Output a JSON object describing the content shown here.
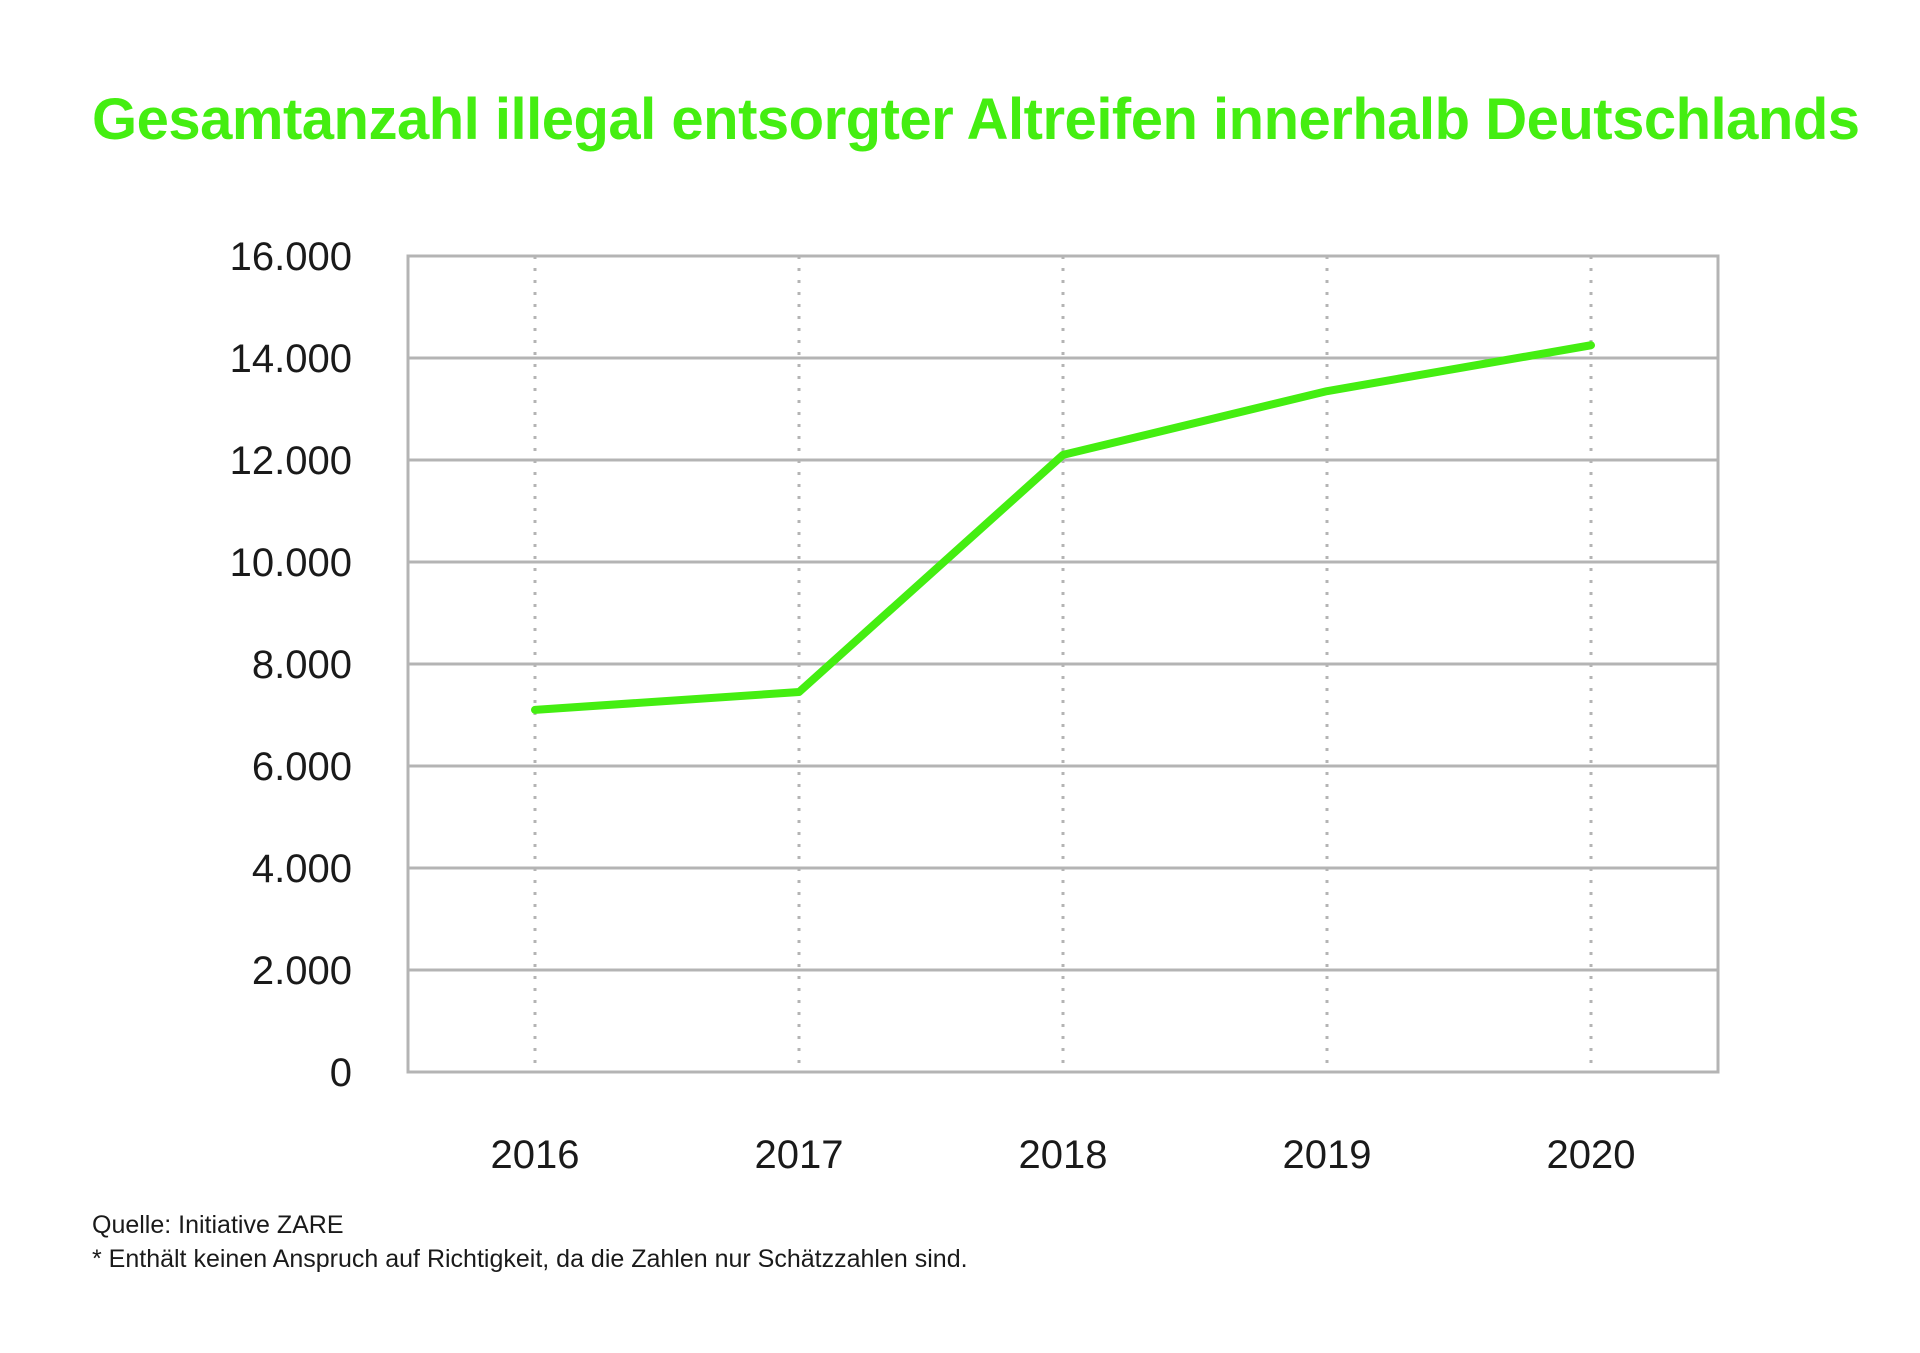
{
  "chart_data": {
    "type": "line",
    "title": "Gesamtanzahl illegal entsorgter Altreifen innerhalb Deutschlands",
    "xlabel": "",
    "ylabel": "",
    "categories": [
      "2016",
      "2017",
      "2018",
      "2019",
      "2020"
    ],
    "series": [
      {
        "values": [
          7100,
          7450,
          12100,
          13350,
          14250
        ],
        "color": "#44ee11"
      }
    ],
    "ylim": [
      0,
      16000
    ],
    "y_ticks": [
      0,
      2000,
      4000,
      6000,
      8000,
      10000,
      12000,
      14000,
      16000
    ],
    "y_tick_labels": [
      "0",
      "2.000",
      "4.000",
      "6.000",
      "8.000",
      "10.000",
      "12.000",
      "14.000",
      "16.000"
    ],
    "grid": "horizontal solid, vertical dotted",
    "legend": "none"
  },
  "footnote": {
    "source": "Quelle: Initiative ZARE",
    "disclaimer": "* Enthält keinen Anspruch auf Richtigkeit, da die Zahlen nur Schätzzahlen sind."
  },
  "colors": {
    "accent": "#44ee11",
    "grid": "#b4b4b4",
    "text": "#1a1a1a"
  }
}
